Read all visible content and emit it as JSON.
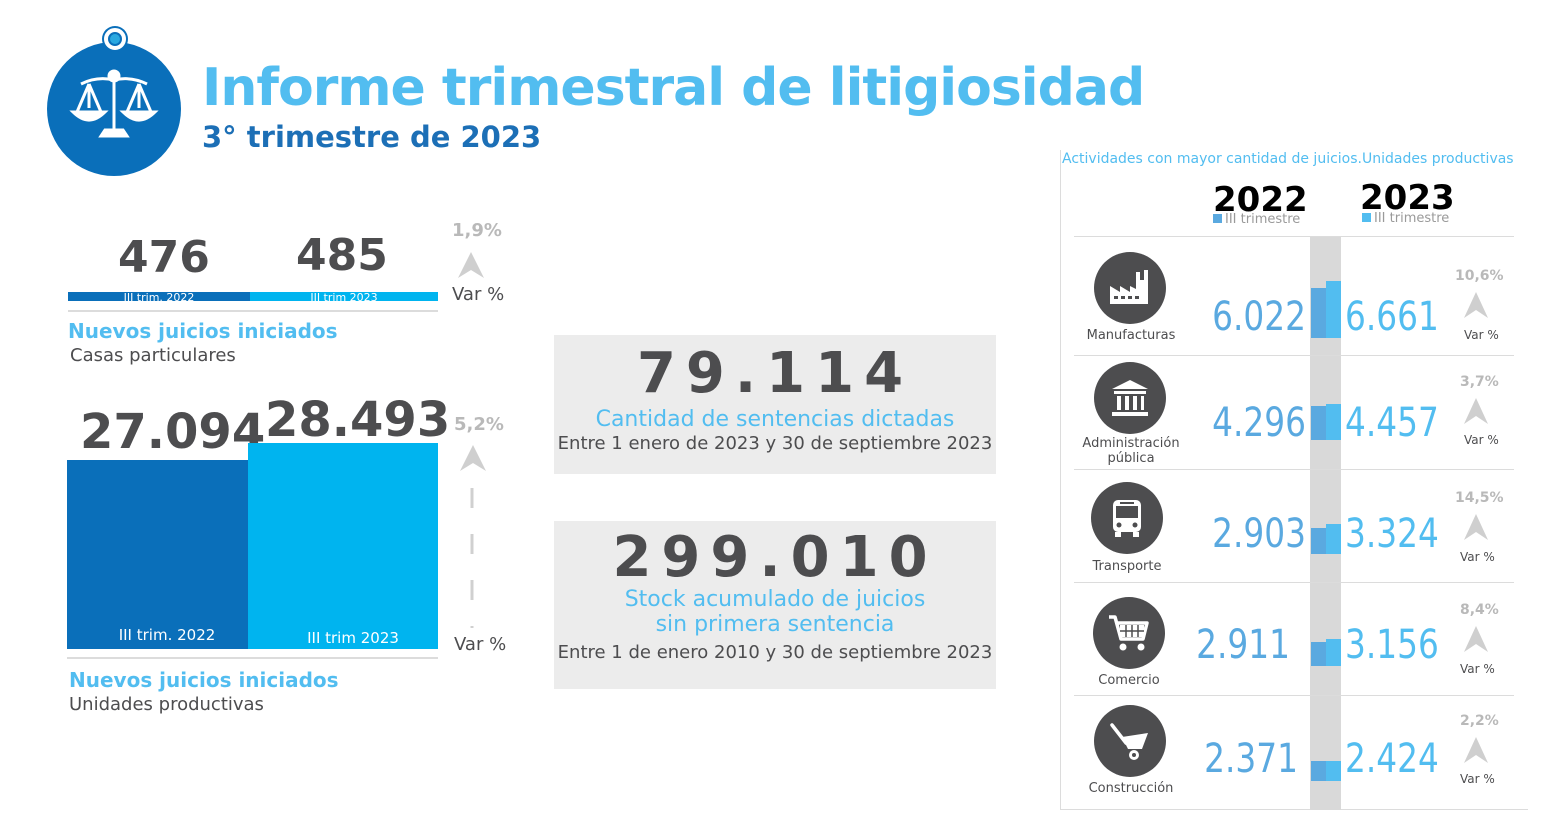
{
  "header": {
    "title": "Informe trimestral de litigiosidad",
    "subtitle": "3° trimestre de 2023",
    "icon": "scales-of-justice-icon"
  },
  "colors": {
    "dark_blue": "#0a6fba",
    "mid_blue": "#1c6fb6",
    "light_blue": "#00b4ef",
    "text_blue": "#52bdf0",
    "gray_text": "#4d4d4f",
    "var_gray": "#b9b9b9",
    "box_gray": "#ececec"
  },
  "casas": {
    "v2022": "476",
    "v2023": "485",
    "label2022": "III trim. 2022",
    "label2023": "III trim 2023",
    "var_pct": "1,9%",
    "var_label": "Var %",
    "title": "Nuevos juicios iniciados",
    "subtitle": "Casas particulares"
  },
  "unidades": {
    "v2022": "27.094",
    "v2023": "28.493",
    "label2022": "III trim. 2022",
    "label2023": "III trim 2023",
    "var_pct": "5,2%",
    "var_label": "Var %",
    "title": "Nuevos juicios iniciados",
    "subtitle": "Unidades productivas"
  },
  "sentencias": {
    "value": "79.114",
    "title": "Cantidad de sentencias dictadas",
    "subtitle": "Entre 1 enero de 2023 y 30 de septiembre 2023"
  },
  "stock": {
    "value": "299.010",
    "title_line1": "Stock acumulado de juicios",
    "title_line2": "sin primera sentencia",
    "subtitle": "Entre 1 de enero 2010 y 30 de septiembre 2023"
  },
  "actividades": {
    "title": "Actividades con mayor cantidad de juicios.Unidades productivas",
    "year1": "2022",
    "year1_sub": "III trimestre",
    "year2": "2023",
    "year2_sub": "III trimestre",
    "var_label": "Var %",
    "rows": [
      {
        "label": "Manufacturas",
        "icon": "factory-icon",
        "v2022": "6.022",
        "v2023": "6.661",
        "var": "10,6%"
      },
      {
        "label": "Administración pública",
        "icon": "government-building-icon",
        "v2022": "4.296",
        "v2023": "4.457",
        "var": "3,7%"
      },
      {
        "label": "Transporte",
        "icon": "bus-icon",
        "v2022": "2.903",
        "v2023": "3.324",
        "var": "14,5%"
      },
      {
        "label": "Comercio",
        "icon": "shopping-cart-icon",
        "v2022": "2.911",
        "v2023": "3.156",
        "var": "8,4%"
      },
      {
        "label": "Construcción",
        "icon": "wheelbarrow-icon",
        "v2022": "2.371",
        "v2023": "2.424",
        "var": "2,2%"
      }
    ]
  }
}
